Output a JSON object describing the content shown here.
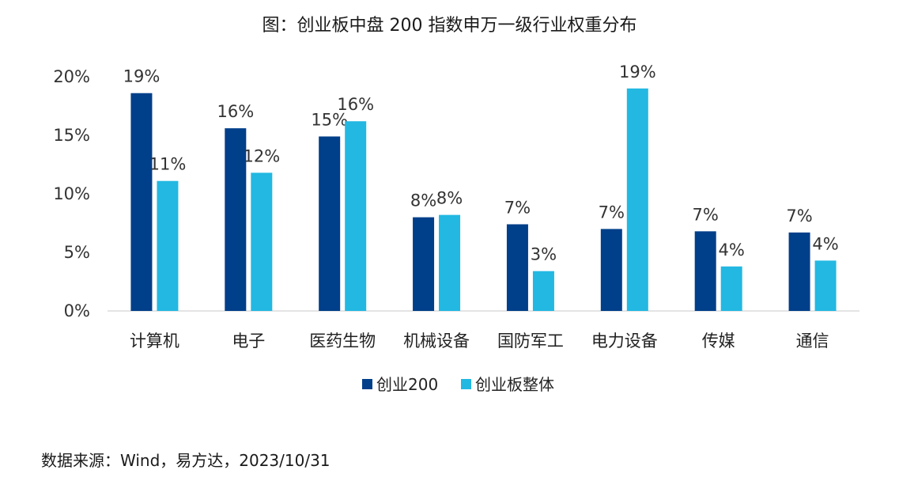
{
  "chart_data": {
    "type": "bar",
    "title": "图：创业板中盘 200 指数申万一级行业权重分布",
    "categories": [
      "计算机",
      "电子",
      "医药生物",
      "机械设备",
      "国防军工",
      "电力设备",
      "传媒",
      "通信"
    ],
    "series": [
      {
        "name": "创业200",
        "color": "#003F8A",
        "values": [
          18.6,
          15.6,
          14.9,
          8.0,
          7.4,
          7.0,
          6.8,
          6.7
        ],
        "labels": [
          "19%",
          "16%",
          "15%",
          "8%",
          "7%",
          "7%",
          "7%",
          "7%"
        ]
      },
      {
        "name": "创业板整体",
        "color": "#22B8E2",
        "values": [
          11.1,
          11.8,
          16.2,
          8.2,
          3.4,
          19.0,
          3.8,
          4.3
        ],
        "labels": [
          "11%",
          "12%",
          "16%",
          "8%",
          "3%",
          "19%",
          "4%",
          "4%"
        ]
      }
    ],
    "y_ticks": [
      0,
      5,
      10,
      15,
      20
    ],
    "y_tick_labels": [
      "0%",
      "5%",
      "10%",
      "15%",
      "20%"
    ],
    "ylim": [
      0,
      20
    ],
    "grid": false,
    "legend_position": "bottom"
  },
  "source": "数据来源：Wind，易方达，2023/10/31"
}
